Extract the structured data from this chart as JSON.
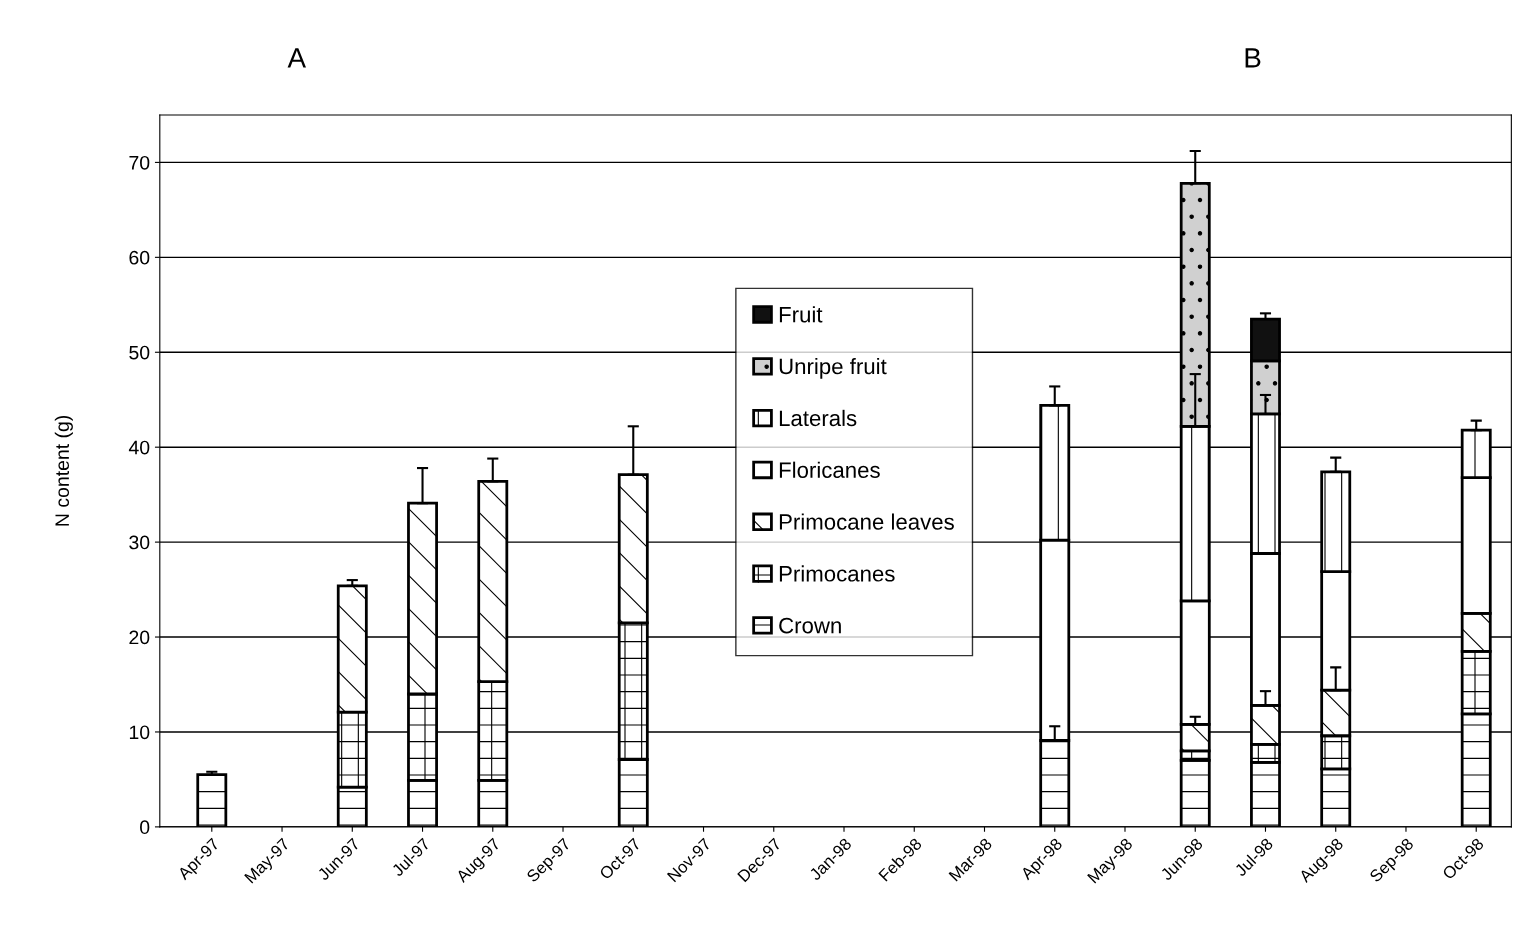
{
  "chart_data": {
    "type": "bar",
    "stacked": true,
    "ylabel": "N content (g)",
    "annotations": [
      "A",
      "B"
    ],
    "categories": [
      "Apr-97",
      "May-97",
      "Jun-97",
      "Jul-97",
      "Aug-97",
      "Sep-97",
      "Oct-97",
      "Nov-97",
      "Dec-97",
      "Jan-98",
      "Feb-98",
      "Mar-98",
      "Apr-98",
      "May-98",
      "Jun-98",
      "Jul-98",
      "Aug-98",
      "Sep-98",
      "Oct-98"
    ],
    "ylim": [
      0,
      75
    ],
    "yticks": [
      0,
      10,
      20,
      30,
      40,
      50,
      60,
      70
    ],
    "grid": "y",
    "legend": "center",
    "series": [
      {
        "name": "Crown",
        "color": "#ffffff",
        "values": [
          5.5,
          null,
          4.2,
          4.9,
          4.9,
          null,
          7.1,
          null,
          null,
          null,
          null,
          null,
          9.1,
          null,
          7.0,
          6.8,
          6.1,
          null,
          11.9
        ],
        "errors": [
          0.3,
          null,
          null,
          null,
          null,
          null,
          null,
          null,
          null,
          null,
          null,
          null,
          1.5,
          null,
          null,
          null,
          null,
          null,
          null
        ]
      },
      {
        "name": "Primocanes",
        "color": "#ffffff",
        "values": [
          null,
          null,
          7.9,
          9.1,
          10.4,
          null,
          14.4,
          null,
          null,
          null,
          null,
          null,
          null,
          null,
          1.0,
          1.9,
          3.5,
          null,
          6.6
        ]
      },
      {
        "name": "Primocane leaves",
        "color": "#ffffff",
        "values": [
          null,
          null,
          13.3,
          20.1,
          21.1,
          null,
          15.6,
          null,
          null,
          null,
          null,
          null,
          null,
          null,
          2.8,
          4.1,
          4.8,
          null,
          4.0
        ],
        "errors": [
          null,
          null,
          0.6,
          3.7,
          2.4,
          null,
          5.1,
          null,
          null,
          null,
          null,
          null,
          null,
          null,
          0.8,
          1.5,
          2.4,
          null,
          null
        ]
      },
      {
        "name": "Floricanes",
        "color": "#ffffff",
        "values": [
          null,
          null,
          null,
          null,
          null,
          null,
          null,
          null,
          null,
          null,
          null,
          null,
          21.1,
          null,
          13.0,
          16.0,
          12.5,
          null,
          14.3
        ]
      },
      {
        "name": "Laterals",
        "color": "#ffffff",
        "values": [
          null,
          null,
          null,
          null,
          null,
          null,
          null,
          null,
          null,
          null,
          null,
          null,
          14.2,
          null,
          18.4,
          14.7,
          10.5,
          null,
          5.0
        ],
        "errors": [
          null,
          null,
          null,
          null,
          null,
          null,
          null,
          null,
          null,
          null,
          null,
          null,
          2.0,
          null,
          5.5,
          2.0,
          1.5,
          null,
          1.0
        ]
      },
      {
        "name": "Unripe fruit",
        "color": "#d0d0d0",
        "values": [
          null,
          null,
          null,
          null,
          null,
          null,
          null,
          null,
          null,
          null,
          null,
          null,
          null,
          null,
          25.6,
          5.6,
          null,
          null,
          null
        ],
        "errors": [
          null,
          null,
          null,
          null,
          null,
          null,
          null,
          null,
          null,
          null,
          null,
          null,
          null,
          null,
          3.4,
          null,
          null,
          null,
          null
        ]
      },
      {
        "name": "Fruit",
        "color": "#111111",
        "values": [
          null,
          null,
          null,
          null,
          null,
          null,
          null,
          null,
          null,
          null,
          null,
          null,
          null,
          null,
          null,
          4.4,
          null,
          null,
          null
        ],
        "errors": [
          null,
          null,
          null,
          null,
          null,
          null,
          null,
          null,
          null,
          null,
          null,
          null,
          null,
          null,
          null,
          0.6,
          null,
          null,
          null
        ]
      }
    ]
  }
}
